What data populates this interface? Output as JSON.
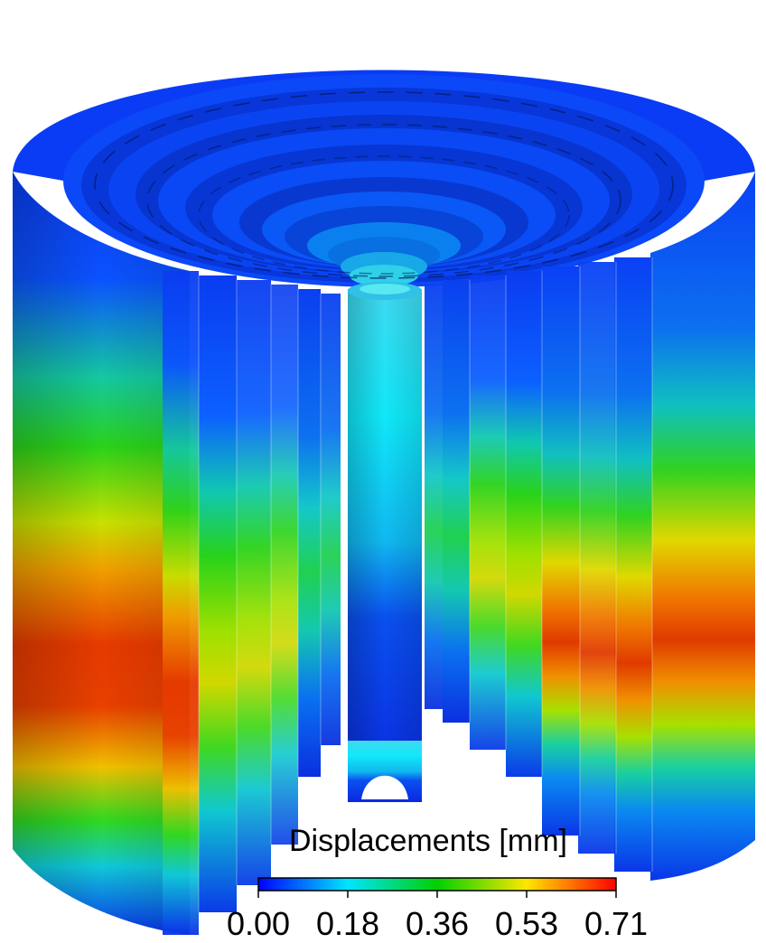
{
  "legend": {
    "title": "Displacements [mm]",
    "ticks": [
      "0.00",
      "0.18",
      "0.36",
      "0.53",
      "0.71"
    ],
    "min": 0.0,
    "max": 0.71,
    "colormap": [
      "#0000ff",
      "#00e5ff",
      "#00d000",
      "#ffe600",
      "#ff0000"
    ]
  }
}
